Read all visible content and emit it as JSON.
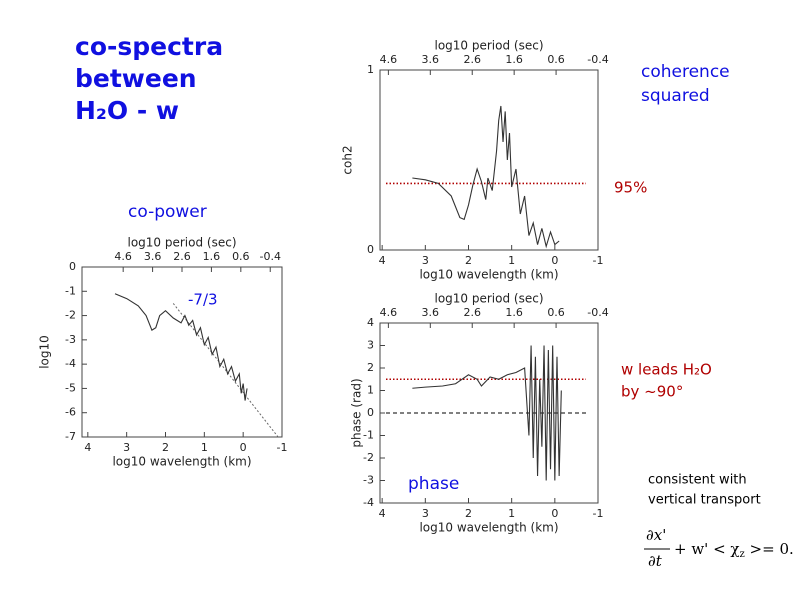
{
  "slide": {
    "title": [
      "co-spectra",
      "between",
      "H₂O - w"
    ],
    "note": [
      "consistent with",
      "vertical transport"
    ],
    "equation": {
      "numerator": "∂x'",
      "denominator": "∂t",
      "rest": "+ w' < χ",
      "sub": "z",
      "end": " >= 0."
    }
  },
  "chart_data": [
    {
      "type": "line",
      "caption": [
        "co-power"
      ],
      "xlabel": "log10 wavelength (km)",
      "x2label": "log10 period (sec)",
      "ylabel": "log10",
      "xlim": [
        4.15,
        -1
      ],
      "xticks": [
        4,
        3,
        2,
        1,
        0,
        -1
      ],
      "x2lim": [
        6,
        -0.8
      ],
      "x2ticks": [
        4.6,
        3.6,
        2.6,
        1.6,
        0.6,
        -0.4
      ],
      "ylim": [
        -7,
        0
      ],
      "yticks": [
        0,
        -1,
        -2,
        -3,
        -4,
        -5,
        -6,
        -7
      ],
      "color": "#333333",
      "x": [
        3.3,
        3.0,
        2.7,
        2.5,
        2.35,
        2.25,
        2.15,
        2.0,
        1.8,
        1.6,
        1.5,
        1.4,
        1.3,
        1.2,
        1.1,
        1.0,
        0.9,
        0.8,
        0.7,
        0.6,
        0.5,
        0.4,
        0.3,
        0.2,
        0.1,
        0.05,
        0.0,
        -0.05,
        -0.1
      ],
      "values": [
        -1.1,
        -1.3,
        -1.6,
        -2.0,
        -2.6,
        -2.5,
        -2.0,
        -1.8,
        -2.1,
        -2.3,
        -2.0,
        -2.4,
        -2.2,
        -2.8,
        -2.5,
        -3.2,
        -2.9,
        -3.6,
        -3.3,
        -4.1,
        -3.8,
        -4.4,
        -4.1,
        -4.7,
        -4.4,
        -5.2,
        -4.8,
        -5.5,
        -5.0
      ],
      "guide_line": {
        "label": "-7/3",
        "color": "#666666",
        "x": [
          1.8,
          -0.9
        ],
        "y": [
          -1.5,
          -7
        ]
      }
    },
    {
      "type": "line",
      "caption": [
        "coherence",
        "squared"
      ],
      "xlabel": "log10 wavelength (km)",
      "x2label": "log10 period (sec)",
      "ylabel": "coh2",
      "xlim": [
        4.05,
        -1
      ],
      "xticks": [
        4,
        3,
        2,
        1,
        0,
        -1
      ],
      "x2lim": [
        4.8,
        -0.4
      ],
      "x2ticks": [
        4.6,
        3.6,
        2.6,
        1.6,
        0.6,
        -0.4
      ],
      "ylim": [
        0,
        1
      ],
      "yticks": [
        0,
        1
      ],
      "color": "#333333",
      "x": [
        3.3,
        3.0,
        2.7,
        2.4,
        2.2,
        2.1,
        2.0,
        1.9,
        1.8,
        1.7,
        1.6,
        1.55,
        1.45,
        1.35,
        1.3,
        1.25,
        1.2,
        1.15,
        1.1,
        1.05,
        1.0,
        0.9,
        0.8,
        0.7,
        0.6,
        0.5,
        0.4,
        0.3,
        0.2,
        0.1,
        0.0,
        -0.1
      ],
      "values": [
        0.4,
        0.39,
        0.37,
        0.3,
        0.18,
        0.17,
        0.25,
        0.36,
        0.45,
        0.38,
        0.28,
        0.4,
        0.33,
        0.55,
        0.72,
        0.8,
        0.6,
        0.77,
        0.5,
        0.65,
        0.35,
        0.45,
        0.2,
        0.3,
        0.08,
        0.15,
        0.03,
        0.12,
        0.02,
        0.1,
        0.03,
        0.05
      ],
      "hlines": [
        {
          "value": 0.37,
          "color": "#b00000",
          "style": "dotted",
          "label": [
            "95%"
          ]
        }
      ]
    },
    {
      "type": "line",
      "caption": [
        "phase"
      ],
      "xlabel": "log10 wavelength (km)",
      "x2label": "log10 period (sec)",
      "ylabel": "phase (rad)",
      "xlim": [
        4.05,
        -1
      ],
      "xticks": [
        4,
        3,
        2,
        1,
        0,
        -1
      ],
      "x2lim": [
        4.8,
        -0.4
      ],
      "x2ticks": [
        4.6,
        3.6,
        2.6,
        1.6,
        0.6,
        -0.4
      ],
      "ylim": [
        -4,
        4
      ],
      "yticks": [
        4,
        3,
        2,
        1,
        0,
        -1,
        -2,
        -3,
        -4
      ],
      "color": "#333333",
      "x": [
        3.3,
        3.0,
        2.6,
        2.3,
        2.0,
        1.8,
        1.7,
        1.5,
        1.3,
        1.1,
        0.9,
        0.7,
        0.6,
        0.55,
        0.5,
        0.45,
        0.4,
        0.35,
        0.3,
        0.25,
        0.2,
        0.15,
        0.1,
        0.05,
        0.0,
        -0.05,
        -0.1,
        -0.15
      ],
      "values": [
        1.1,
        1.15,
        1.2,
        1.3,
        1.7,
        1.5,
        1.2,
        1.6,
        1.5,
        1.7,
        1.8,
        2.0,
        -1.0,
        3.0,
        -2.0,
        2.5,
        -2.8,
        1.5,
        -1.5,
        3.0,
        -3.0,
        2.8,
        -2.5,
        3.0,
        -3.0,
        2.5,
        -2.8,
        1.0
      ],
      "hlines": [
        {
          "value": 1.5,
          "color": "#b00000",
          "style": "dotted",
          "label": [
            "w leads H₂O",
            "by ~90°"
          ]
        },
        {
          "value": 0,
          "color": "#000000",
          "style": "dashed"
        }
      ]
    }
  ]
}
